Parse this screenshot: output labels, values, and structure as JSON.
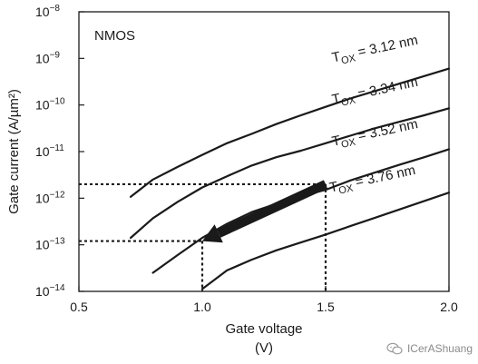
{
  "chart_data": {
    "type": "line",
    "xlabel": "Gate voltage",
    "xlabel_unit": "(V)",
    "ylabel": "Gate current (A/µm²)",
    "xlim": [
      0.5,
      2.0
    ],
    "ylim_log10": [
      -14,
      -8
    ],
    "y_scale": "log",
    "x_ticks": [
      0.5,
      1.0,
      1.5,
      2.0
    ],
    "x_tick_labels": [
      "0.5",
      "1.0",
      "1.5",
      "2.0"
    ],
    "y_ticks_exponent": [
      -14,
      -13,
      -12,
      -11,
      -10,
      -9,
      -8
    ],
    "y_tick_base": "10",
    "grid": false,
    "annotation_label": "NMOS",
    "series": [
      {
        "name": "TOX = 3.12 nm",
        "label_main": "T",
        "label_sub": "OX",
        "label_rest": " = 3.12 nm",
        "x": [
          0.71,
          0.8,
          0.9,
          1.0,
          1.1,
          1.2,
          1.3,
          1.4,
          1.5,
          1.6,
          1.7,
          1.8,
          1.9,
          2.0
        ],
        "y_log10": [
          -11.97,
          -11.6,
          -11.33,
          -11.07,
          -10.82,
          -10.62,
          -10.41,
          -10.22,
          -10.04,
          -9.86,
          -9.7,
          -9.54,
          -9.38,
          -9.22
        ]
      },
      {
        "name": "TOX = 3.34 nm",
        "label_main": "T",
        "label_sub": "OX",
        "label_rest": " = 3.34 nm",
        "x": [
          0.71,
          0.8,
          0.9,
          1.0,
          1.1,
          1.2,
          1.3,
          1.4,
          1.5,
          1.6,
          1.7,
          1.8,
          1.9,
          2.0
        ],
        "y_log10": [
          -12.85,
          -12.43,
          -12.08,
          -11.77,
          -11.53,
          -11.3,
          -11.12,
          -10.98,
          -10.82,
          -10.66,
          -10.5,
          -10.36,
          -10.22,
          -10.07
        ]
      },
      {
        "name": "TOX = 3.52 nm",
        "label_main": "T",
        "label_sub": "OX",
        "label_rest": " = 3.52 nm",
        "x": [
          0.8,
          0.9,
          1.0,
          1.1,
          1.2,
          1.3,
          1.4,
          1.5,
          1.6,
          1.7,
          1.8,
          1.9,
          2.0
        ],
        "y_log10": [
          -13.6,
          -13.22,
          -12.85,
          -12.55,
          -12.3,
          -12.12,
          -11.96,
          -11.82,
          -11.62,
          -11.45,
          -11.28,
          -11.12,
          -10.95
        ]
      },
      {
        "name": "TOX = 3.76 nm",
        "label_main": "T",
        "label_sub": "OX",
        "label_rest": " = 3.76 nm",
        "x": [
          1.0,
          1.1,
          1.2,
          1.3,
          1.4,
          1.5,
          1.6,
          1.7,
          1.8,
          1.9,
          2.0
        ],
        "y_log10": [
          -13.95,
          -13.55,
          -13.32,
          -13.12,
          -12.95,
          -12.78,
          -12.6,
          -12.42,
          -12.24,
          -12.06,
          -11.88
        ]
      }
    ],
    "reference_lines": [
      {
        "from": [
          0.5,
          -11.7
        ],
        "to": [
          1.5,
          -11.7
        ],
        "style": "dotted"
      },
      {
        "from": [
          1.5,
          -11.7
        ],
        "to": [
          1.5,
          -14
        ],
        "style": "dotted"
      },
      {
        "from": [
          0.5,
          -12.92
        ],
        "to": [
          1.0,
          -12.92
        ],
        "style": "dotted"
      },
      {
        "from": [
          1.0,
          -12.92
        ],
        "to": [
          1.0,
          -14
        ],
        "style": "dotted"
      }
    ],
    "arrow": {
      "from": [
        1.5,
        -11.7
      ],
      "to": [
        1.0,
        -12.92
      ]
    },
    "colors": {
      "line": "#1a1a1a",
      "background": "#ffffff"
    }
  },
  "watermark": {
    "text": "ICerAShuang"
  }
}
